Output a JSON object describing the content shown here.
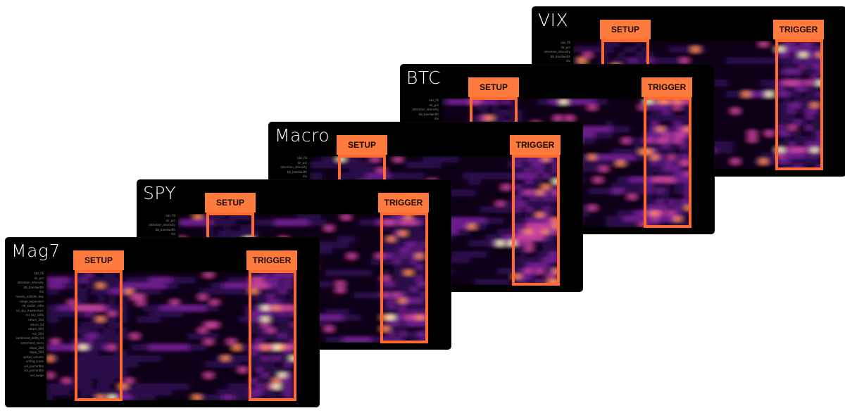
{
  "features": [
    "abs_fill",
    "dir_pct",
    "attention_intensity",
    "bb_bandwidth",
    "dix",
    "moody_outside_day",
    "range_expansion",
    "rel_sector_ratio",
    "rel_spy_momentum",
    "rel_vxy_ratio",
    "return_20d",
    "return_5d",
    "return_60d",
    "rsvi_20d",
    "sentiment_delta_5d",
    "sentiment_norm",
    "slope_20d",
    "slope_50d",
    "spikes_volume",
    "unflag_score",
    "vol_percentile",
    "vol_percentile",
    "vol_surge"
  ],
  "chart_data": {
    "type": "heatmap",
    "panels": [
      {
        "title": "VIX",
        "setup_label": "SETUP",
        "trigger_label": "TRIGGER"
      },
      {
        "title": "BTC",
        "setup_label": "SETUP",
        "trigger_label": "TRIGGER"
      },
      {
        "title": "Macro",
        "setup_label": "SETUP",
        "trigger_label": "TRIGGER"
      },
      {
        "title": "SPY",
        "setup_label": "SETUP",
        "trigger_label": "TRIGGER"
      },
      {
        "title": "Mag7",
        "setup_label": "SETUP",
        "trigger_label": "TRIGGER"
      }
    ],
    "colormap": [
      "#0a0614",
      "#2a0f4a",
      "#6a1f8a",
      "#c2409a",
      "#ff8a5a",
      "#fff0c0"
    ]
  }
}
